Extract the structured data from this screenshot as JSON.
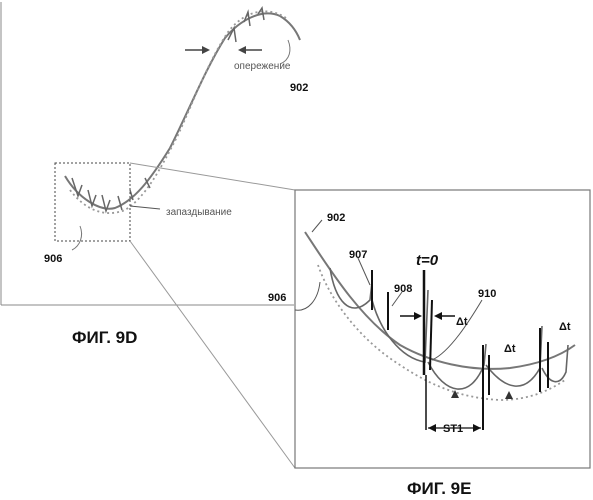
{
  "figure_9d": {
    "caption": "ФИГ. 9D",
    "lead_label": "опережение",
    "lag_label": "запаздывание",
    "curve_ref": "902",
    "region_ref": "906"
  },
  "figure_9e": {
    "caption": "ФИГ. 9E",
    "curve_ref": "902",
    "region_ref": "906",
    "ref_907": "907",
    "ref_908": "908",
    "ref_910": "910",
    "time_zero": "t=0",
    "delta_t_1": "Δt",
    "delta_t_2": "Δt",
    "delta_t_3": "Δt",
    "segment_label": "ST1"
  }
}
